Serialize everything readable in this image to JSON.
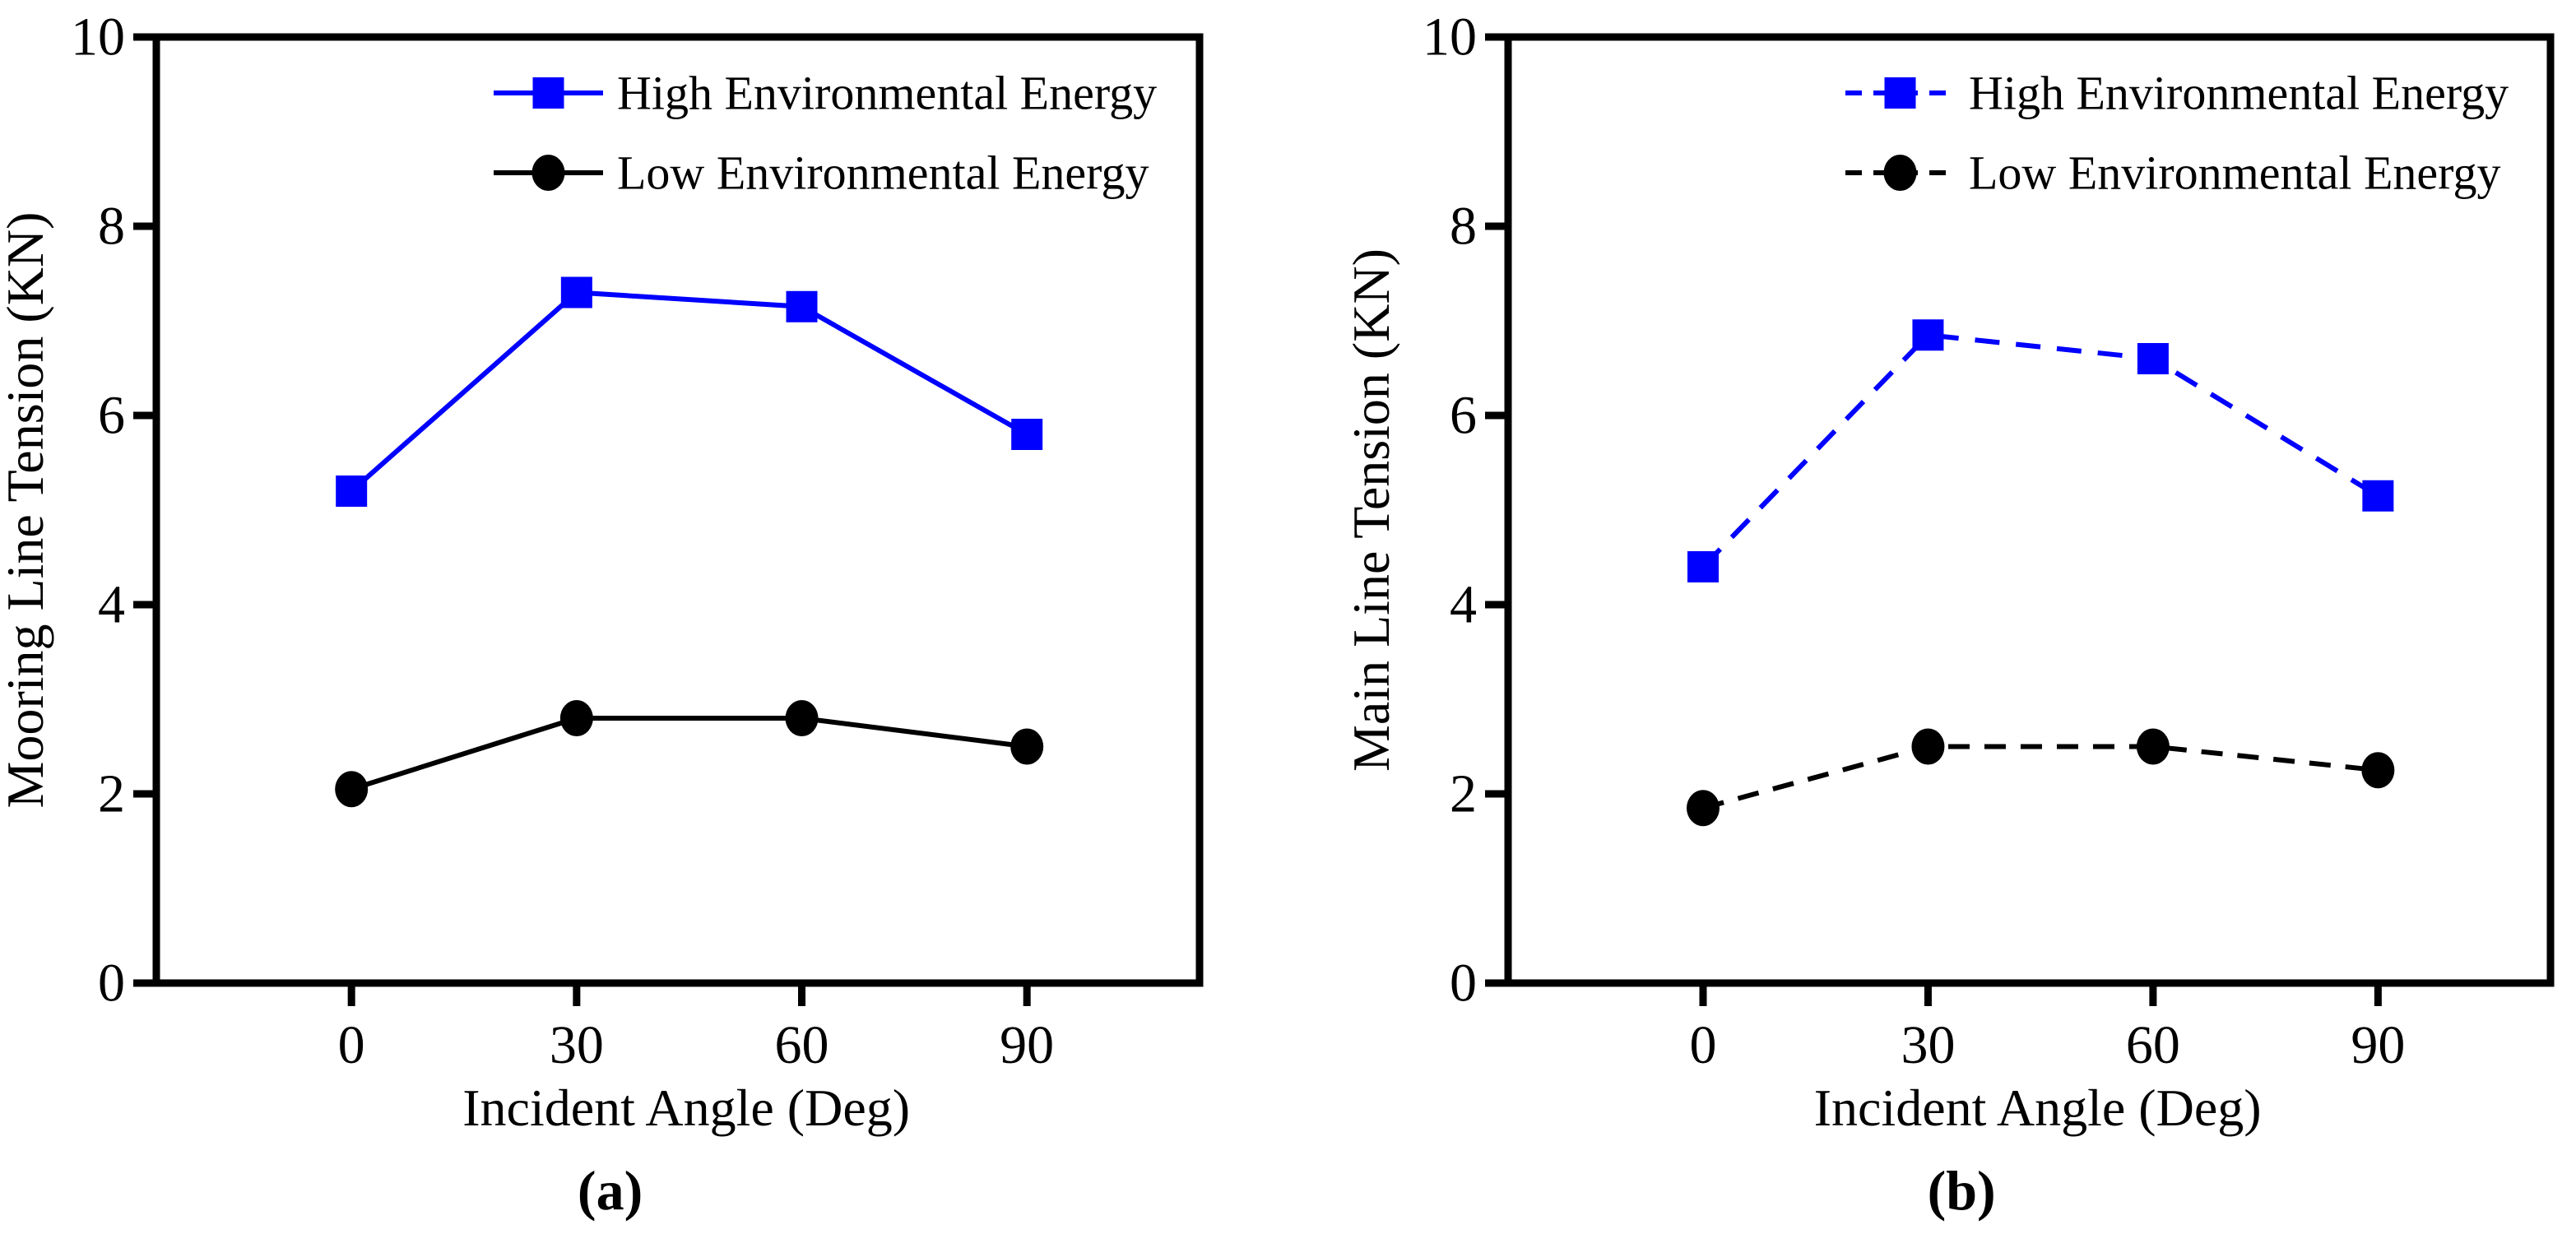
{
  "figure": {
    "background": "#ffffff",
    "frame_color": "#000000",
    "high_series_color": "#0000ff",
    "low_series_color": "#000000"
  },
  "chart_data": [
    {
      "id": "a",
      "type": "line",
      "caption": "(a)",
      "xlabel": "Incident Angle (Deg)",
      "ylabel": "Mooring Line Tension (KN)",
      "xlim": [
        -26,
        113
      ],
      "ylim": [
        0,
        10
      ],
      "x_ticks": [
        0,
        30,
        60,
        90
      ],
      "x_tick_labels": [
        "0",
        "30",
        "60",
        "90"
      ],
      "y_ticks": [
        0,
        2,
        4,
        6,
        8,
        10
      ],
      "y_tick_labels": [
        "0",
        "2",
        "4",
        "6",
        "8",
        "10"
      ],
      "grid": false,
      "legend_position": "upper right inside",
      "line_dash": "solid",
      "x": [
        0,
        30,
        60,
        90
      ],
      "series": [
        {
          "name": "High Environmental Energy",
          "marker": "square",
          "color": "#0000ff",
          "values": [
            5.2,
            7.3,
            7.15,
            5.8
          ]
        },
        {
          "name": "Low Environmental Energy",
          "marker": "circle",
          "color": "#000000",
          "values": [
            2.05,
            2.8,
            2.8,
            2.5
          ]
        }
      ]
    },
    {
      "id": "b",
      "type": "line",
      "caption": "(b)",
      "xlabel": "Incident Angle (Deg)",
      "ylabel": "Main Line Tension (KN)",
      "xlim": [
        -26,
        113
      ],
      "ylim": [
        0,
        10
      ],
      "x_ticks": [
        0,
        30,
        60,
        90
      ],
      "x_tick_labels": [
        "0",
        "30",
        "60",
        "90"
      ],
      "y_ticks": [
        0,
        2,
        4,
        6,
        8,
        10
      ],
      "y_tick_labels": [
        "0",
        "2",
        "4",
        "6",
        "8",
        "10"
      ],
      "grid": false,
      "legend_position": "upper right inside",
      "line_dash": "dashed",
      "x": [
        0,
        30,
        60,
        90
      ],
      "series": [
        {
          "name": "High Environmental Energy",
          "marker": "square",
          "color": "#0000ff",
          "values": [
            4.4,
            6.85,
            6.6,
            5.15
          ]
        },
        {
          "name": "Low Environmental Energy",
          "marker": "circle",
          "color": "#000000",
          "values": [
            1.85,
            2.5,
            2.5,
            2.25
          ]
        }
      ]
    }
  ]
}
